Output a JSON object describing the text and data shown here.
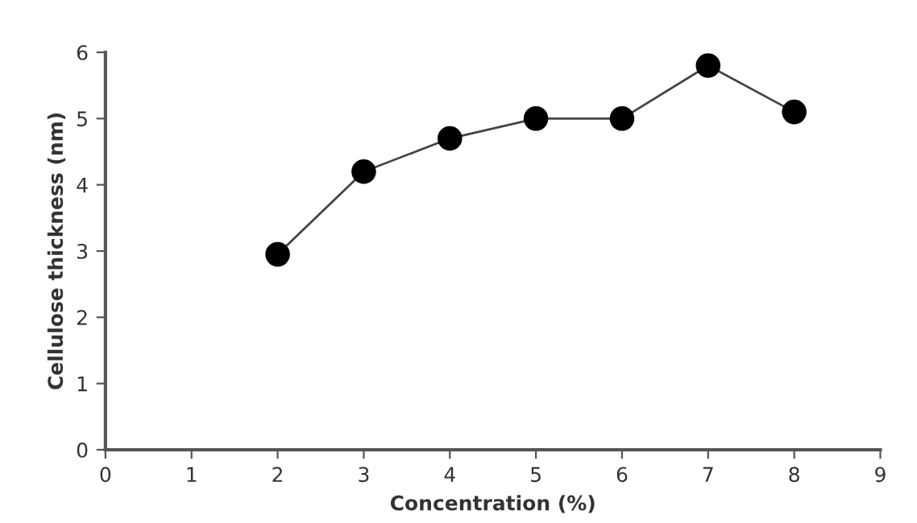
{
  "chart_data": {
    "type": "line",
    "xlabel": "Concentration (%)",
    "ylabel": "Cellulose thickness (nm)",
    "x": [
      2,
      3,
      4,
      5,
      6,
      7,
      8
    ],
    "series": [
      {
        "color": "#000000",
        "values": [
          2.95,
          4.2,
          4.7,
          5.0,
          5.0,
          5.8,
          5.1
        ]
      }
    ],
    "xlim": [
      0,
      9
    ],
    "xticks": [
      0,
      1,
      2,
      3,
      4,
      5,
      6,
      7,
      8,
      9
    ],
    "ylim": [
      0,
      6
    ],
    "yticks": [
      0,
      1,
      2,
      3,
      4,
      5,
      6
    ],
    "marker": "circle",
    "line_style": "solid",
    "grid": false,
    "legend": false
  }
}
